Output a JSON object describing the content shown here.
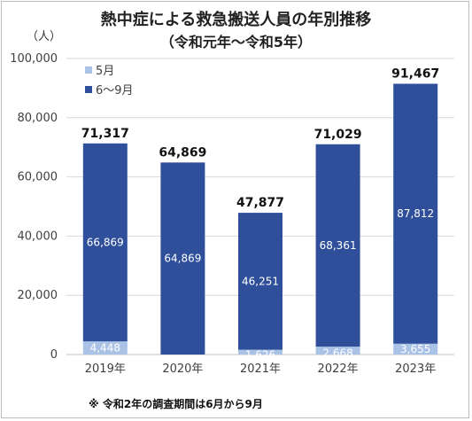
{
  "title_line1": "熱中症による救急搬送人員の年別推移",
  "title_line2": "（令和元年～令和5年）",
  "unit_label": "（人）",
  "footnote": "※ 令和2年の調査期間は6月から9月",
  "chart_data": {
    "type": "bar",
    "stacked": true,
    "categories": [
      "2019年",
      "2020年",
      "2021年",
      "2022年",
      "2023年"
    ],
    "series": [
      {
        "name": "5月",
        "color": "#a9c2e6",
        "values": [
          4448,
          0,
          1626,
          2668,
          3655
        ],
        "labels": [
          "4,448",
          "",
          "1,626",
          "2,668",
          "3,655"
        ]
      },
      {
        "name": "6～9月",
        "color": "#2f4f9a",
        "values": [
          66869,
          64869,
          46251,
          68361,
          87812
        ],
        "labels": [
          "66,869",
          "64,869",
          "46,251",
          "68,361",
          "87,812"
        ]
      }
    ],
    "totals": [
      "71,317",
      "64,869",
      "47,877",
      "71,029",
      "91,467"
    ],
    "ylim": [
      0,
      100000
    ],
    "yticks": [
      "0",
      "20,000",
      "40,000",
      "60,000",
      "80,000",
      "100,000"
    ],
    "grid": true,
    "legend_position": "top-left"
  }
}
